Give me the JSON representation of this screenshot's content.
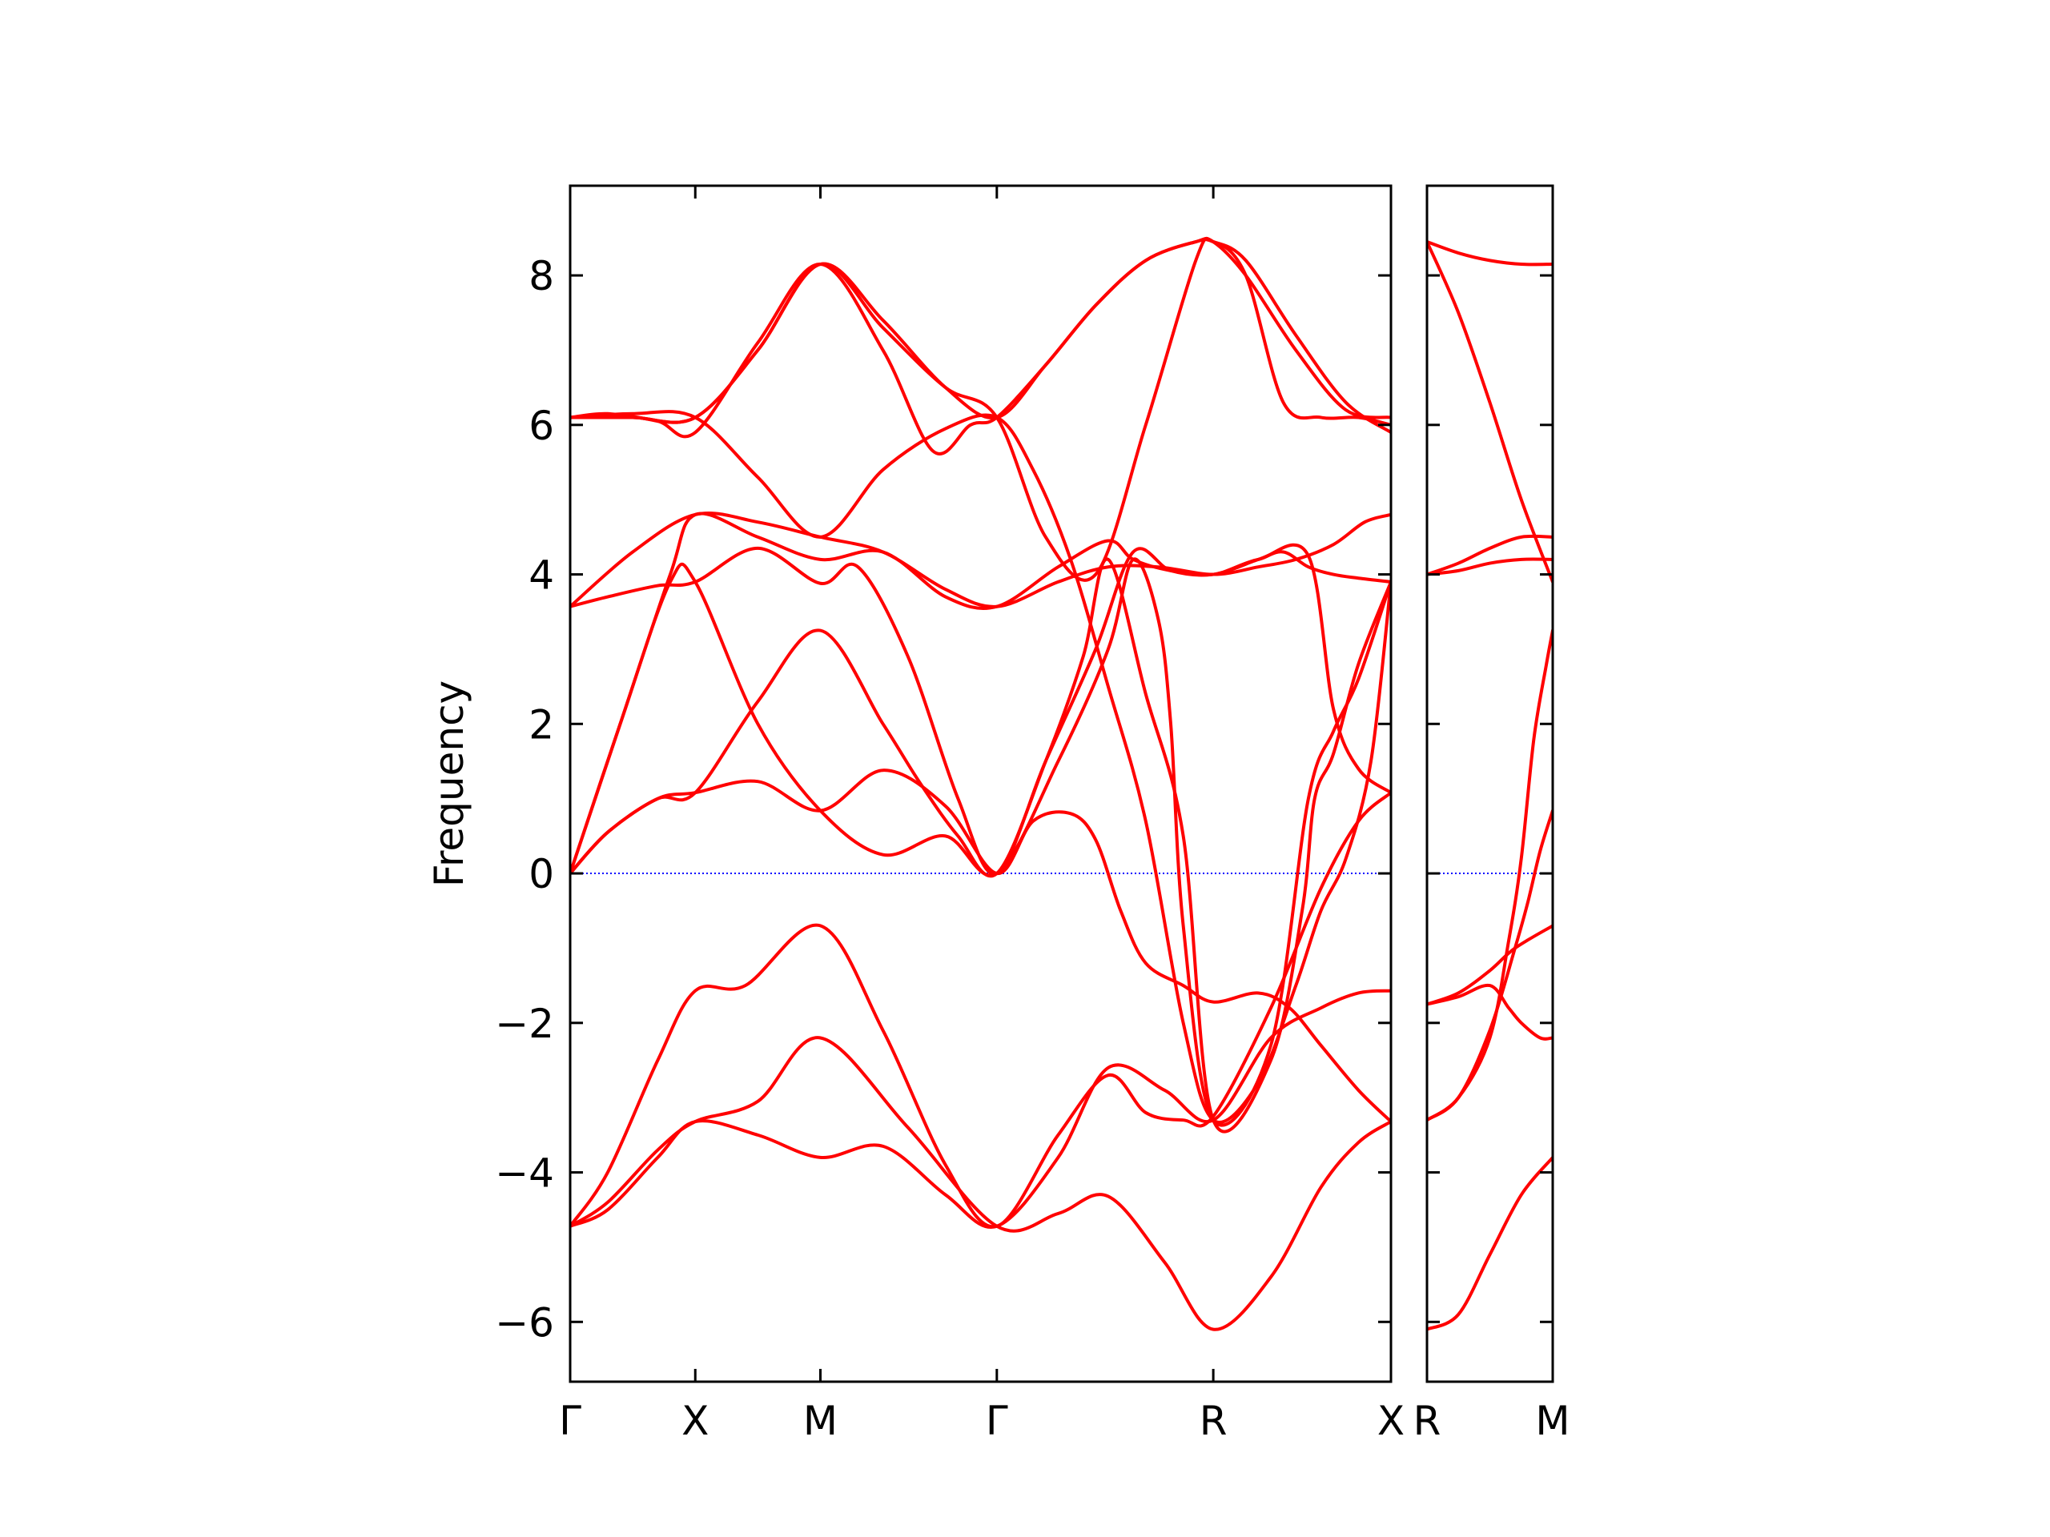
{
  "chart_data": {
    "type": "line",
    "ylabel": "Frequency",
    "ylim": [
      -6.8,
      9.2
    ],
    "yticks": [
      -6,
      -4,
      -2,
      0,
      2,
      4,
      6,
      8
    ],
    "ytick_labels": [
      "−6",
      "−4",
      "−2",
      "0",
      "2",
      "4",
      "6",
      "8"
    ],
    "line_color": "#ff0000",
    "zero_line_color": "#0000ff",
    "panels": [
      {
        "xlim": [
          0,
          6.56
        ],
        "ticks": [
          {
            "x": 0,
            "label": "Γ"
          },
          {
            "x": 1,
            "label": "X"
          },
          {
            "x": 2,
            "label": "M"
          },
          {
            "x": 3.41,
            "label": "Γ"
          },
          {
            "x": 5.14,
            "label": "R"
          },
          {
            "x": 6.56,
            "label": "X"
          }
        ],
        "series": [
          {
            "x": [
              0,
              0.3,
              0.7,
              1.0,
              1.5,
              2.0,
              2.7,
              3.41,
              3.9,
              4.3,
              4.75,
              5.14,
              5.6,
              6.0,
              6.3,
              6.56
            ],
            "values": [
              -4.72,
              -4.4,
              -3.7,
              -3.32,
              -3.05,
              -2.2,
              -3.4,
              -4.72,
              -4.55,
              -4.32,
              -5.2,
              -6.1,
              -5.4,
              -4.2,
              -3.6,
              -3.32
            ]
          },
          {
            "x": [
              0,
              0.3,
              0.7,
              1.0,
              1.5,
              2.0,
              2.5,
              3.0,
              3.41,
              3.9,
              4.3,
              4.75,
              5.14,
              5.6,
              6.0,
              6.3,
              6.56
            ],
            "values": [
              -4.72,
              -4.5,
              -3.8,
              -3.32,
              -3.5,
              -3.8,
              -3.65,
              -4.3,
              -4.72,
              -3.8,
              -2.6,
              -2.9,
              -3.3,
              -2.2,
              -1.8,
              -1.6,
              -1.57
            ]
          },
          {
            "x": [
              0,
              0.3,
              0.7,
              1.0,
              1.4,
              2.0,
              2.5,
              3.0,
              3.41,
              3.9,
              4.3,
              4.6,
              4.9,
              5.14,
              5.6,
              6.0,
              6.3,
              6.56
            ],
            "values": [
              -4.72,
              -4.0,
              -2.5,
              -1.57,
              -1.5,
              -0.7,
              -2.1,
              -3.9,
              -4.72,
              -3.5,
              -2.7,
              -3.2,
              -3.3,
              -3.25,
              -1.8,
              -0.2,
              0.7,
              1.08
            ]
          },
          {
            "x": [
              0,
              0.3,
              0.7,
              1.0,
              1.5,
              2.0,
              2.5,
              3.0,
              3.41,
              3.7,
              4.0,
              4.2,
              4.4,
              4.6,
              4.9,
              5.14,
              5.5,
              5.75,
              6.0,
              6.3,
              6.56
            ],
            "values": [
              0,
              0.55,
              1.0,
              1.08,
              1.23,
              0.84,
              1.38,
              0.9,
              0,
              0.7,
              0.8,
              0.45,
              -0.5,
              -1.2,
              -1.5,
              -1.72,
              -1.6,
              -1.8,
              -2.3,
              -2.9,
              -3.32
            ]
          },
          {
            "x": [
              0,
              0.4,
              0.8,
              1.0,
              1.5,
              2.0,
              2.5,
              3.0,
              3.41,
              3.9,
              4.3,
              4.5,
              4.8,
              5.14,
              5.5,
              5.7,
              5.9,
              6.1,
              6.3,
              6.56
            ],
            "values": [
              0,
              2.0,
              4.0,
              4.8,
              4.5,
              4.2,
              4.3,
              3.7,
              3.57,
              4.1,
              4.45,
              4.2,
              4.05,
              4.0,
              4.2,
              4.3,
              4.1,
              4.0,
              3.95,
              3.9
            ]
          },
          {
            "x": [
              0,
              0.4,
              0.8,
              1.0,
              1.5,
              2.0,
              2.5,
              3.0,
              3.41,
              3.9,
              4.3,
              4.5,
              4.7,
              4.8,
              4.9,
              5.14,
              5.6,
              5.9,
              6.1,
              6.3,
              6.56
            ],
            "values": [
              0,
              2.0,
              3.9,
              3.9,
              2.0,
              0.84,
              0.25,
              0.5,
              0,
              1.5,
              3.0,
              4.2,
              3.4,
              2.0,
              -0.7,
              -3.3,
              -2.3,
              1.0,
              1.9,
              2.6,
              3.9
            ]
          },
          {
            "x": [
              0,
              0.3,
              0.7,
              1.0,
              1.5,
              2.0,
              2.5,
              2.8,
              3.1,
              3.41,
              3.8,
              4.1,
              4.3,
              4.6,
              4.9,
              5.14,
              5.6,
              5.85,
              5.95,
              6.1,
              6.3,
              6.56
            ],
            "values": [
              0,
              0.55,
              1.0,
              1.08,
              2.3,
              3.25,
              2.0,
              1.2,
              0.5,
              0,
              1.5,
              2.9,
              4.2,
              2.4,
              0.5,
              -3.3,
              -2.5,
              -0.5,
              1.0,
              1.6,
              2.8,
              3.9
            ]
          },
          {
            "x": [
              0,
              0.3,
              0.7,
              1.0,
              1.5,
              2.0,
              2.3,
              2.7,
              3.1,
              3.41,
              3.8,
              4.2,
              4.5,
              4.8,
              5.14,
              5.5,
              5.9,
              6.1,
              6.3,
              6.56
            ],
            "values": [
              3.57,
              3.7,
              3.85,
              3.9,
              4.35,
              3.88,
              4.1,
              2.9,
              1.0,
              0,
              1.5,
              3.0,
              4.3,
              4.05,
              4.0,
              4.2,
              4.25,
              2.2,
              1.4,
              1.08
            ]
          },
          {
            "x": [
              0,
              0.5,
              1.0,
              1.5,
              2.0,
              2.5,
              3.0,
              3.41,
              3.9,
              4.3,
              4.7,
              5.14,
              5.5,
              5.8,
              6.1,
              6.35,
              6.56
            ],
            "values": [
              3.57,
              4.3,
              4.8,
              4.7,
              4.5,
              4.3,
              3.8,
              3.57,
              3.9,
              4.1,
              4.1,
              4.0,
              4.1,
              4.2,
              4.4,
              4.7,
              4.8
            ]
          },
          {
            "x": [
              0,
              0.5,
              1.0,
              1.5,
              2.0,
              2.5,
              3.0,
              3.41,
              3.7,
              4.0,
              4.3,
              4.6,
              4.9,
              5.14,
              5.5,
              5.8,
              6.0,
              6.2,
              6.4,
              6.56
            ],
            "values": [
              6.1,
              6.15,
              6.1,
              5.3,
              4.5,
              5.4,
              5.95,
              6.1,
              5.4,
              4.2,
              2.5,
              0.7,
              -2.0,
              -3.3,
              -2.8,
              -1.5,
              -0.5,
              0.2,
              1.5,
              3.9
            ]
          },
          {
            "x": [
              0,
              0.5,
              1.0,
              1.5,
              2.0,
              2.5,
              3.0,
              3.41,
              3.8,
              4.2,
              4.6,
              5.0,
              5.14,
              5.4,
              5.7,
              6.0,
              6.3,
              6.56
            ],
            "values": [
              6.1,
              6.1,
              6.1,
              7.0,
              8.15,
              7.3,
              6.5,
              6.1,
              4.5,
              4.0,
              6.0,
              8.2,
              8.45,
              8.0,
              6.3,
              6.1,
              6.1,
              6.0
            ]
          },
          {
            "x": [
              0,
              0.3,
              0.7,
              1.0,
              1.5,
              2.0,
              2.5,
              2.9,
              3.2,
              3.41,
              3.8,
              4.2,
              4.6,
              5.0,
              5.14,
              5.4,
              5.8,
              6.2,
              6.56
            ],
            "values": [
              6.1,
              6.15,
              6.05,
              5.9,
              7.1,
              8.15,
              7.0,
              5.65,
              6.0,
              6.1,
              6.8,
              7.6,
              8.2,
              8.45,
              8.45,
              8.0,
              7.0,
              6.2,
              6.1
            ]
          },
          {
            "x": [
              0,
              0.5,
              1.0,
              1.5,
              2.0,
              2.5,
              3.0,
              3.41,
              3.8,
              4.2,
              4.6,
              5.0,
              5.14,
              5.4,
              5.8,
              6.2,
              6.56
            ],
            "values": [
              6.1,
              6.1,
              6.1,
              7.0,
              8.15,
              7.4,
              6.5,
              6.1,
              6.8,
              7.6,
              8.2,
              8.45,
              8.45,
              8.2,
              7.2,
              6.3,
              5.9
            ]
          }
        ]
      },
      {
        "xlim": [
          0,
          1
        ],
        "ticks": [
          {
            "x": 0,
            "label": "R"
          },
          {
            "x": 1,
            "label": "M"
          }
        ],
        "series": [
          {
            "x": [
              0,
              0.25,
              0.5,
              0.75,
              1
            ],
            "values": [
              8.45,
              8.3,
              8.2,
              8.15,
              8.15
            ]
          },
          {
            "x": [
              0,
              0.25,
              0.5,
              0.75,
              1
            ],
            "values": [
              8.45,
              7.5,
              6.3,
              5.0,
              3.9
            ]
          },
          {
            "x": [
              0,
              0.25,
              0.5,
              0.75,
              1
            ],
            "values": [
              4.0,
              4.15,
              4.35,
              4.5,
              4.5
            ]
          },
          {
            "x": [
              0,
              0.25,
              0.5,
              0.75,
              1
            ],
            "values": [
              4.0,
              4.05,
              4.15,
              4.2,
              4.2
            ]
          },
          {
            "x": [
              0,
              0.25,
              0.5,
              0.65,
              0.75,
              0.9,
              1
            ],
            "values": [
              -1.75,
              -1.65,
              -1.5,
              -1.8,
              -2.0,
              -2.2,
              -2.2
            ]
          },
          {
            "x": [
              0,
              0.25,
              0.5,
              0.7,
              1
            ],
            "values": [
              -1.75,
              -1.6,
              -1.3,
              -1.0,
              -0.7
            ]
          },
          {
            "x": [
              0,
              0.25,
              0.5,
              0.65,
              0.75,
              0.85,
              0.95,
              1
            ],
            "values": [
              -3.3,
              -3.0,
              -2.2,
              -0.9,
              0.2,
              1.8,
              2.8,
              3.25
            ]
          },
          {
            "x": [
              0,
              0.25,
              0.5,
              0.7,
              0.8,
              0.9,
              1
            ],
            "values": [
              -3.3,
              -3.0,
              -2.1,
              -1.0,
              -0.4,
              0.3,
              0.84
            ]
          },
          {
            "x": [
              0,
              0.25,
              0.5,
              0.75,
              1
            ],
            "values": [
              -6.1,
              -5.9,
              -5.1,
              -4.3,
              -3.8
            ]
          }
        ]
      }
    ]
  }
}
